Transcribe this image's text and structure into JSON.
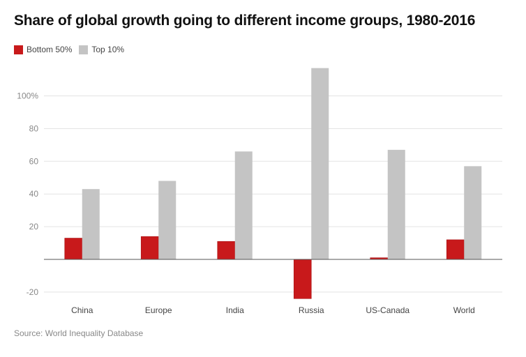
{
  "chart_data": {
    "type": "bar",
    "title": "Share of global growth going to different income groups, 1980-2016",
    "categories": [
      "China",
      "Europe",
      "India",
      "Russia",
      "US-Canada",
      "World"
    ],
    "series": [
      {
        "name": "Bottom 50%",
        "color": "#c8191b",
        "values": [
          13,
          14,
          11,
          -24,
          1,
          12
        ]
      },
      {
        "name": "Top 10%",
        "color": "#c4c4c4",
        "values": [
          43,
          48,
          66,
          117,
          67,
          57
        ]
      }
    ],
    "yticks": [
      {
        "value": -20,
        "label": "-20"
      },
      {
        "value": 20,
        "label": "20"
      },
      {
        "value": 40,
        "label": "40"
      },
      {
        "value": 60,
        "label": "60"
      },
      {
        "value": 80,
        "label": "80"
      },
      {
        "value": 100,
        "label": "100%"
      }
    ],
    "ylim": [
      -26,
      118
    ],
    "grid": true,
    "legend": "top-left",
    "xlabel": "",
    "ylabel": "",
    "source": "Source: World Inequality Database"
  }
}
